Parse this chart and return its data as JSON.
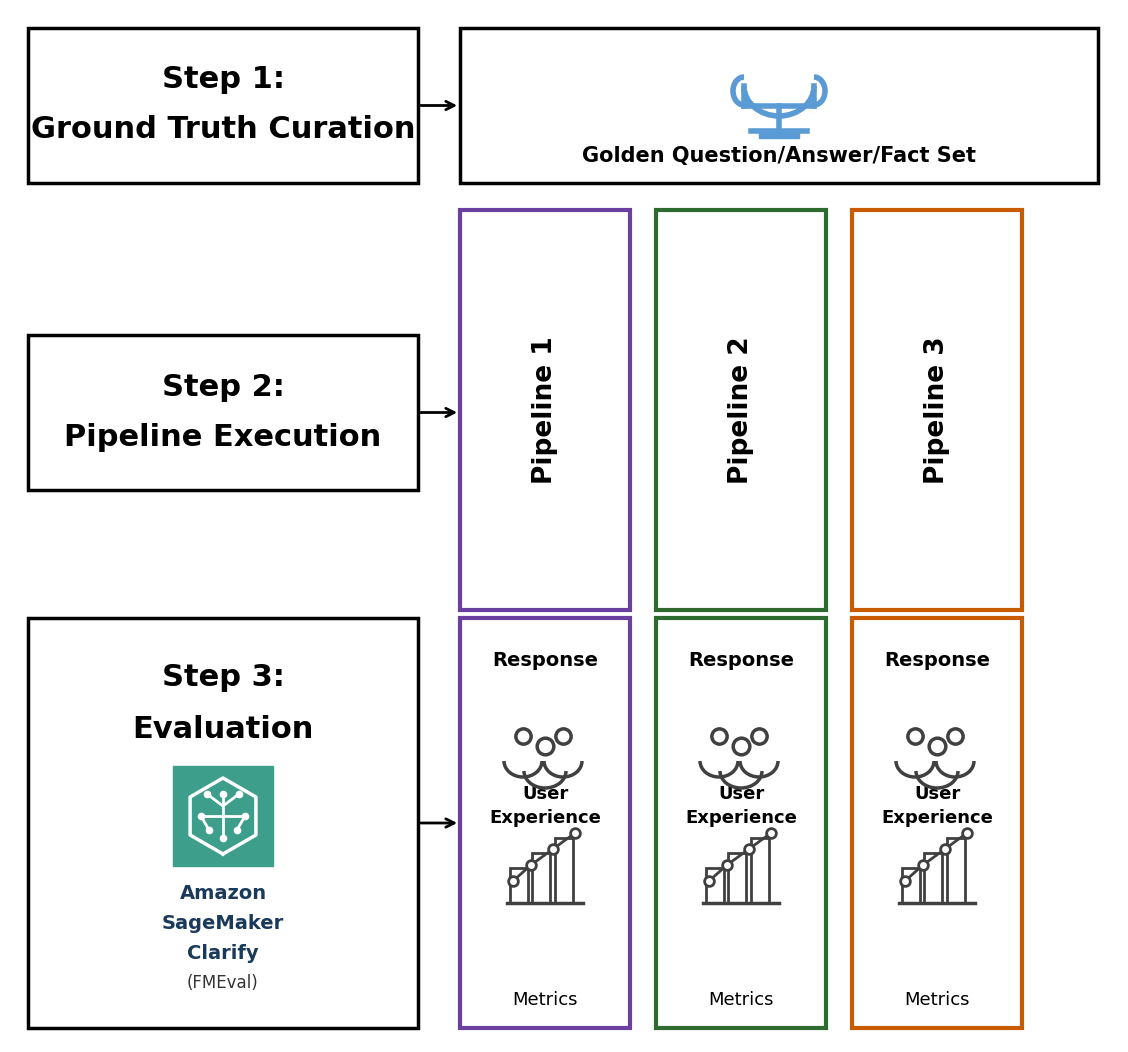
{
  "step1_text_line1": "Step 1:",
  "step1_text_line2": "Ground Truth Curation",
  "step2_text_line1": "Step 2:",
  "step2_text_line2": "Pipeline Execution",
  "step3_text_line1": "Step 3:",
  "step3_text_line2": "Evaluation",
  "golden_text": "Golden Question/Answer/Fact Set",
  "pipeline_labels": [
    "Pipeline 1",
    "Pipeline 2",
    "Pipeline 3"
  ],
  "pipeline_colors": [
    "#6B3FA0",
    "#2E6B2E",
    "#C85A00"
  ],
  "bg_color": "#ffffff",
  "response_label": "Response",
  "ux_label_line1": "User",
  "ux_label_line2": "Experience",
  "metrics_label": "Metrics",
  "amazon_label": [
    "Amazon",
    "SageMaker",
    "Clarify",
    "(FMEval)"
  ],
  "teal_color": "#3D9E8C",
  "trophy_color": "#5B9BD5",
  "dark_navy": "#1A3A5C",
  "icon_color": "#404040"
}
